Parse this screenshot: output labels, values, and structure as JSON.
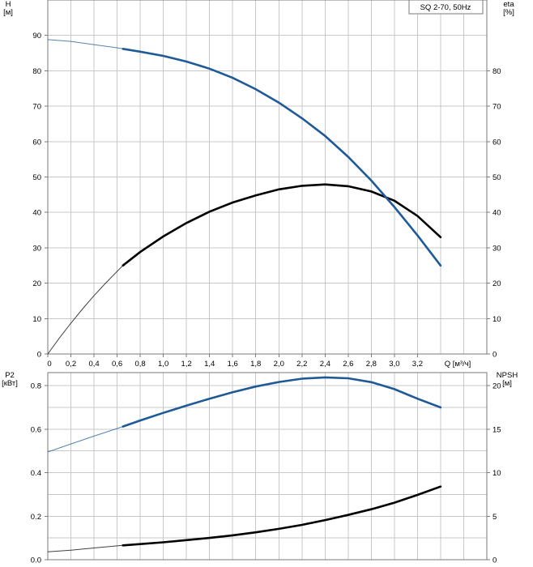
{
  "chart_data": [
    {
      "type": "line",
      "title": "SQ 2-70, 50Hz",
      "xlabel": "Q [м³/ч]",
      "ylabel": "H\n[м]",
      "y2label": "eta\n[%]",
      "x_ticks": [
        "0",
        "0,2",
        "0,4",
        "0,6",
        "0,8",
        "1,0",
        "1,2",
        "1,4",
        "1,6",
        "1,8",
        "2,0",
        "2,2",
        "2,4",
        "2,6",
        "2,8",
        "3,0",
        "3,2"
      ],
      "y_ticks": [
        "0",
        "10",
        "20",
        "30",
        "40",
        "50",
        "60",
        "70",
        "80",
        "90"
      ],
      "y2_ticks": [
        "0",
        "10",
        "20",
        "30",
        "40",
        "50",
        "60",
        "70",
        "80"
      ],
      "xlim": [
        0,
        3.8
      ],
      "ylim": [
        0,
        100
      ],
      "y2lim": [
        0,
        100
      ],
      "series": [
        {
          "name": "H",
          "color": "#1f5a96",
          "thin_until": 0.65,
          "x": [
            0,
            0.2,
            0.4,
            0.6,
            0.65,
            0.8,
            1.0,
            1.2,
            1.4,
            1.6,
            1.8,
            2.0,
            2.2,
            2.4,
            2.6,
            2.8,
            3.0,
            3.2,
            3.4
          ],
          "values": [
            88.8,
            88.3,
            87.4,
            86.5,
            86.2,
            85.4,
            84.2,
            82.6,
            80.6,
            78.0,
            74.8,
            71.0,
            66.6,
            61.6,
            55.7,
            49.0,
            41.5,
            33.5,
            25.0
          ]
        },
        {
          "name": "eta",
          "axis": "right",
          "color": "#000000",
          "thin_until": 0.65,
          "x": [
            0,
            0.1,
            0.2,
            0.3,
            0.4,
            0.5,
            0.65,
            0.8,
            1.0,
            1.2,
            1.4,
            1.6,
            1.8,
            2.0,
            2.2,
            2.4,
            2.6,
            2.8,
            3.0,
            3.2,
            3.4
          ],
          "values": [
            0,
            4.5,
            8.7,
            12.7,
            16.5,
            20.0,
            25.0,
            28.8,
            33.2,
            37.0,
            40.2,
            42.8,
            44.8,
            46.5,
            47.5,
            47.9,
            47.4,
            45.9,
            43.3,
            39.0,
            33.0
          ]
        }
      ]
    },
    {
      "type": "line",
      "xlabel": "",
      "ylabel": "P2\n[кВт]",
      "y2label": "NPSH\n[м]",
      "y_ticks": [
        "0.0",
        "0.2",
        "0.4",
        "0.6",
        "0.8"
      ],
      "y2_ticks": [
        "0",
        "5",
        "10",
        "15",
        "20"
      ],
      "xlim": [
        0,
        3.8
      ],
      "ylim": [
        0,
        0.86
      ],
      "y2lim": [
        0,
        21.5
      ],
      "series": [
        {
          "name": "P2",
          "color": "#1f5a96",
          "thin_until": 0.65,
          "x": [
            0,
            0.2,
            0.4,
            0.65,
            0.8,
            1.0,
            1.2,
            1.4,
            1.6,
            1.8,
            2.0,
            2.2,
            2.4,
            2.6,
            2.8,
            3.0,
            3.2,
            3.4
          ],
          "values": [
            0.495,
            0.532,
            0.568,
            0.612,
            0.64,
            0.675,
            0.708,
            0.74,
            0.77,
            0.796,
            0.817,
            0.832,
            0.838,
            0.834,
            0.816,
            0.784,
            0.74,
            0.7
          ]
        },
        {
          "name": "NPSH",
          "axis": "right",
          "color": "#000000",
          "thin_until": 0.65,
          "x": [
            0,
            0.2,
            0.4,
            0.65,
            0.8,
            1.0,
            1.2,
            1.4,
            1.6,
            1.8,
            2.0,
            2.2,
            2.4,
            2.6,
            2.8,
            3.0,
            3.2,
            3.4
          ],
          "values": [
            0.9,
            1.1,
            1.35,
            1.65,
            1.8,
            2.0,
            2.25,
            2.5,
            2.8,
            3.15,
            3.55,
            4.0,
            4.55,
            5.15,
            5.8,
            6.55,
            7.45,
            8.4
          ]
        }
      ]
    }
  ]
}
